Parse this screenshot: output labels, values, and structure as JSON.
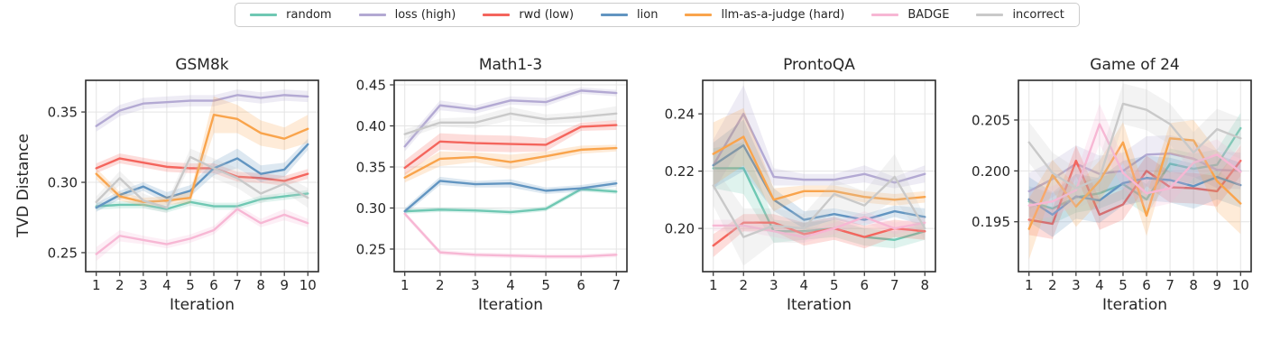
{
  "figure": {
    "ylabel": "TVD Distance"
  },
  "style": {
    "grid_color": "#e4e4e4",
    "spine_color": "#2b2b2b",
    "text_color": "#262626",
    "band_opacity": 0.22,
    "line_width": 2.4
  },
  "legend": {
    "items": [
      {
        "key": "random",
        "label": "random",
        "color": "#6fc8b3"
      },
      {
        "key": "loss-high",
        "label": "loss (high)",
        "color": "#b3a9d3"
      },
      {
        "key": "rwd-low",
        "label": "rwd (low)",
        "color": "#f4655d"
      },
      {
        "key": "lion",
        "label": "lion",
        "color": "#6295c1"
      },
      {
        "key": "llm-judge",
        "label": "llm-as-a-judge (hard)",
        "color": "#f9a44c"
      },
      {
        "key": "badge",
        "label": "BADGE",
        "color": "#f7b7d4"
      },
      {
        "key": "incorrect",
        "label": "incorrect",
        "color": "#c9c9c9"
      }
    ]
  },
  "chart_data": [
    {
      "type": "line",
      "title": "GSM8k",
      "xlabel": "Iteration",
      "ylabel": "TVD Distance",
      "grid": true,
      "legend_position": "top-outside",
      "x": [
        1,
        2,
        3,
        4,
        5,
        6,
        7,
        8,
        9,
        10
      ],
      "xticks": [
        1,
        2,
        3,
        4,
        5,
        6,
        7,
        8,
        9,
        10
      ],
      "xlim": [
        0.55,
        10.45
      ],
      "yticks": [
        0.25,
        0.3,
        0.35
      ],
      "ytick_labels": [
        "0.25",
        "0.30",
        "0.35"
      ],
      "ylim": [
        0.2365,
        0.3725
      ],
      "series": [
        {
          "name": "random",
          "label": "random",
          "color": "#6fc8b3",
          "values": [
            0.283,
            0.284,
            0.284,
            0.281,
            0.286,
            0.283,
            0.283,
            0.288,
            0.29,
            0.292
          ],
          "band": 0.0025
        },
        {
          "name": "loss-high",
          "label": "loss (high)",
          "color": "#b3a9d3",
          "values": [
            0.34,
            0.351,
            0.356,
            0.357,
            0.358,
            0.358,
            0.362,
            0.36,
            0.362,
            0.361
          ],
          "band": 0.004
        },
        {
          "name": "rwd-low",
          "label": "rwd (low)",
          "color": "#f4655d",
          "values": [
            0.31,
            0.317,
            0.314,
            0.311,
            0.31,
            0.31,
            0.304,
            0.303,
            0.301,
            0.306
          ],
          "band": 0.0035
        },
        {
          "name": "lion",
          "label": "lion",
          "color": "#6295c1",
          "values": [
            0.282,
            0.291,
            0.297,
            0.289,
            0.294,
            0.31,
            0.317,
            0.306,
            0.309,
            0.327
          ],
          "band": [
            0.003,
            0.003,
            0.003,
            0.004,
            0.004,
            0.005,
            0.007,
            0.006,
            0.005,
            0.004
          ]
        },
        {
          "name": "llm-judge",
          "label": "llm-as-a-judge (hard)",
          "color": "#f9a44c",
          "values": [
            0.306,
            0.29,
            0.286,
            0.287,
            0.289,
            0.348,
            0.345,
            0.335,
            0.331,
            0.338
          ],
          "band": [
            0.004,
            0.003,
            0.003,
            0.003,
            0.004,
            0.013,
            0.01,
            0.009,
            0.008,
            0.01
          ]
        },
        {
          "name": "badge",
          "label": "BADGE",
          "color": "#f7b7d4",
          "values": [
            0.249,
            0.262,
            0.259,
            0.256,
            0.26,
            0.266,
            0.281,
            0.271,
            0.277,
            0.271
          ],
          "band": [
            0.005,
            0.004,
            0.003,
            0.003,
            0.003,
            0.003,
            0.003,
            0.003,
            0.004,
            0.003
          ]
        },
        {
          "name": "incorrect",
          "label": "incorrect",
          "color": "#c9c9c9",
          "values": [
            0.286,
            0.303,
            0.287,
            0.282,
            0.318,
            0.31,
            0.303,
            0.292,
            0.299,
            0.289
          ],
          "band": [
            0.004,
            0.005,
            0.005,
            0.004,
            0.006,
            0.007,
            0.007,
            0.007,
            0.006,
            0.007
          ]
        }
      ]
    },
    {
      "type": "line",
      "title": "Math1-3",
      "xlabel": "Iteration",
      "ylabel": "",
      "grid": true,
      "legend_position": "top-outside",
      "x": [
        1,
        2,
        3,
        4,
        5,
        6,
        7
      ],
      "xticks": [
        1,
        2,
        3,
        4,
        5,
        6,
        7
      ],
      "xlim": [
        0.7,
        7.3
      ],
      "yticks": [
        0.25,
        0.3,
        0.35,
        0.4,
        0.45
      ],
      "ytick_labels": [
        "0.25",
        "0.30",
        "0.35",
        "0.40",
        "0.45"
      ],
      "ylim": [
        0.2225,
        0.4555
      ],
      "series": [
        {
          "name": "random",
          "label": "random",
          "color": "#6fc8b3",
          "values": [
            0.296,
            0.298,
            0.297,
            0.295,
            0.299,
            0.323,
            0.32
          ],
          "band": 0.003
        },
        {
          "name": "loss-high",
          "label": "loss (high)",
          "color": "#b3a9d3",
          "values": [
            0.375,
            0.425,
            0.42,
            0.431,
            0.429,
            0.443,
            0.44
          ],
          "band": [
            0.006,
            0.006,
            0.005,
            0.005,
            0.005,
            0.004,
            0.004
          ]
        },
        {
          "name": "rwd-low",
          "label": "rwd (low)",
          "color": "#f4655d",
          "values": [
            0.349,
            0.381,
            0.379,
            0.378,
            0.377,
            0.399,
            0.401
          ],
          "band": [
            0.009,
            0.01,
            0.01,
            0.01,
            0.008,
            0.005,
            0.006
          ]
        },
        {
          "name": "lion",
          "label": "lion",
          "color": "#6295c1",
          "values": [
            0.296,
            0.333,
            0.329,
            0.33,
            0.321,
            0.324,
            0.33
          ],
          "band": [
            0.004,
            0.005,
            0.004,
            0.005,
            0.004,
            0.004,
            0.004
          ]
        },
        {
          "name": "llm-judge",
          "label": "llm-as-a-judge (hard)",
          "color": "#f9a44c",
          "values": [
            0.337,
            0.36,
            0.362,
            0.356,
            0.363,
            0.371,
            0.373
          ],
          "band": [
            0.006,
            0.009,
            0.006,
            0.009,
            0.006,
            0.005,
            0.004
          ]
        },
        {
          "name": "badge",
          "label": "BADGE",
          "color": "#f7b7d4",
          "values": [
            0.293,
            0.246,
            0.243,
            0.242,
            0.241,
            0.241,
            0.243
          ],
          "band": 0.003
        },
        {
          "name": "incorrect",
          "label": "incorrect",
          "color": "#c9c9c9",
          "values": [
            0.39,
            0.404,
            0.404,
            0.415,
            0.408,
            0.411,
            0.415
          ],
          "band": [
            0.006,
            0.005,
            0.007,
            0.008,
            0.006,
            0.006,
            0.009
          ]
        }
      ]
    },
    {
      "type": "line",
      "title": "ProntoQA",
      "xlabel": "Iteration",
      "ylabel": "",
      "grid": true,
      "legend_position": "top-outside",
      "x": [
        1,
        2,
        3,
        4,
        5,
        6,
        7,
        8
      ],
      "xticks": [
        1,
        2,
        3,
        4,
        5,
        6,
        7,
        8
      ],
      "xlim": [
        0.65,
        8.35
      ],
      "yticks": [
        0.2,
        0.22,
        0.24
      ],
      "ytick_labels": [
        "0.20",
        "0.22",
        "0.24"
      ],
      "ylim": [
        0.1849,
        0.2517
      ],
      "series": [
        {
          "name": "random",
          "label": "random",
          "color": "#6fc8b3",
          "values": [
            0.221,
            0.221,
            0.199,
            0.199,
            0.2,
            0.197,
            0.196,
            0.199
          ],
          "band": [
            0.007,
            0.009,
            0.004,
            0.003,
            0.003,
            0.003,
            0.003,
            0.003
          ]
        },
        {
          "name": "loss-high",
          "label": "loss (high)",
          "color": "#b3a9d3",
          "values": [
            0.222,
            0.24,
            0.218,
            0.217,
            0.217,
            0.219,
            0.216,
            0.219
          ],
          "band": [
            0.009,
            0.01,
            0.003,
            0.002,
            0.002,
            0.003,
            0.002,
            0.003
          ]
        },
        {
          "name": "rwd-low",
          "label": "rwd (low)",
          "color": "#f4655d",
          "values": [
            0.194,
            0.202,
            0.202,
            0.198,
            0.2,
            0.197,
            0.2,
            0.199
          ],
          "band": [
            0.004,
            0.003,
            0.003,
            0.004,
            0.004,
            0.004,
            0.003,
            0.003
          ]
        },
        {
          "name": "lion",
          "label": "lion",
          "color": "#6295c1",
          "values": [
            0.222,
            0.229,
            0.21,
            0.203,
            0.205,
            0.203,
            0.206,
            0.204
          ],
          "band": [
            0.008,
            0.009,
            0.004,
            0.003,
            0.002,
            0.002,
            0.002,
            0.003
          ]
        },
        {
          "name": "llm-judge",
          "label": "llm-as-a-judge (hard)",
          "color": "#f9a44c",
          "values": [
            0.226,
            0.232,
            0.21,
            0.213,
            0.213,
            0.211,
            0.21,
            0.211
          ],
          "band": [
            0.011,
            0.01,
            0.004,
            0.002,
            0.002,
            0.002,
            0.002,
            0.002
          ]
        },
        {
          "name": "badge",
          "label": "BADGE",
          "color": "#f7b7d4",
          "values": [
            0.201,
            0.201,
            0.199,
            0.197,
            0.2,
            0.204,
            0.2,
            0.202
          ],
          "band": 0.002
        },
        {
          "name": "incorrect",
          "label": "incorrect",
          "color": "#c9c9c9",
          "values": [
            0.215,
            0.197,
            0.201,
            0.2,
            0.212,
            0.208,
            0.218,
            0.2
          ],
          "band": [
            0.007,
            0.01,
            0.006,
            0.005,
            0.005,
            0.005,
            0.008,
            0.004
          ]
        }
      ]
    },
    {
      "type": "line",
      "title": "Game of 24",
      "xlabel": "Iteration",
      "ylabel": "",
      "grid": true,
      "legend_position": "top-outside",
      "x": [
        1,
        2,
        3,
        4,
        5,
        6,
        7,
        8,
        9,
        10
      ],
      "xticks": [
        1,
        2,
        3,
        4,
        5,
        6,
        7,
        8,
        9,
        10
      ],
      "xlim": [
        0.55,
        10.45
      ],
      "yticks": [
        0.195,
        0.2,
        0.205
      ],
      "ytick_labels": [
        "0.195",
        "0.200",
        "0.205"
      ],
      "ylim": [
        0.1901,
        0.2089
      ],
      "series": [
        {
          "name": "random",
          "label": "random",
          "color": "#6fc8b3",
          "values": [
            0.197,
            0.1963,
            0.1974,
            0.1978,
            0.1987,
            0.1972,
            0.2007,
            0.2002,
            0.2006,
            0.2042
          ],
          "band": 0.0015
        },
        {
          "name": "loss-high",
          "label": "loss (high)",
          "color": "#b3a9d3",
          "values": [
            0.198,
            0.1992,
            0.2007,
            0.1997,
            0.2,
            0.2016,
            0.2017,
            0.2012,
            0.2001,
            0.2
          ],
          "band": 0.0018
        },
        {
          "name": "rwd-low",
          "label": "rwd (low)",
          "color": "#f4655d",
          "values": [
            0.1952,
            0.1948,
            0.201,
            0.1957,
            0.1967,
            0.2,
            0.1984,
            0.1983,
            0.198,
            0.201
          ],
          "band": 0.0015
        },
        {
          "name": "lion",
          "label": "lion",
          "color": "#6295c1",
          "values": [
            0.1972,
            0.1957,
            0.1975,
            0.1971,
            0.1988,
            0.1993,
            0.1991,
            0.1985,
            0.1994,
            0.1986
          ],
          "band": 0.0022
        },
        {
          "name": "llm-judge",
          "label": "llm-as-a-judge (hard)",
          "color": "#f9a44c",
          "values": [
            0.1943,
            0.1996,
            0.1965,
            0.199,
            0.2028,
            0.1956,
            0.2032,
            0.203,
            0.199,
            0.1968
          ],
          "band": [
            0.003,
            0.0015,
            0.002,
            0.002,
            0.002,
            0.002,
            0.0015,
            0.002,
            0.003,
            0.003
          ]
        },
        {
          "name": "badge",
          "label": "BADGE",
          "color": "#f7b7d4",
          "values": [
            0.1966,
            0.197,
            0.1981,
            0.2046,
            0.1998,
            0.1978,
            0.1983,
            0.2008,
            0.2016,
            0.1999
          ],
          "band": [
            0.0015,
            0.0015,
            0.0015,
            0.002,
            0.0015,
            0.0015,
            0.0015,
            0.0015,
            0.0015,
            0.0015
          ]
        },
        {
          "name": "incorrect",
          "label": "incorrect",
          "color": "#c9c9c9",
          "values": [
            0.2028,
            0.1998,
            0.1983,
            0.1993,
            0.2066,
            0.206,
            0.2046,
            0.2018,
            0.2041,
            0.2032
          ],
          "band": 0.002
        }
      ]
    }
  ]
}
